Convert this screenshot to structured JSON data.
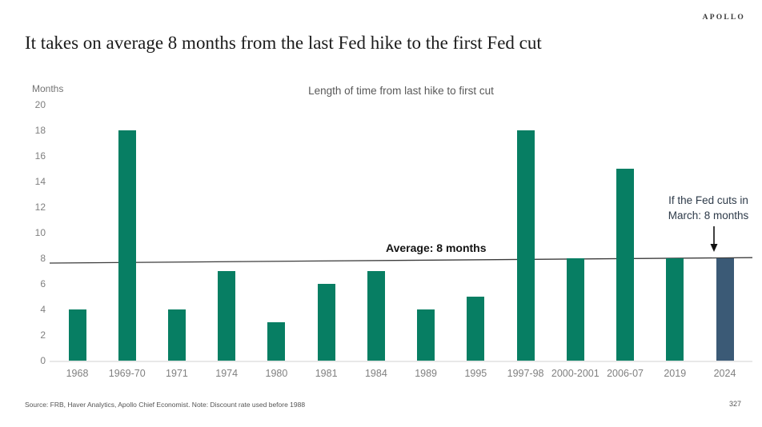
{
  "header": {
    "logo": "APOLLO",
    "title": "It takes on average 8 months from the last Fed hike to the first Fed cut"
  },
  "chart_data": {
    "type": "bar",
    "title": "Length of time from last hike to first cut",
    "ylabel": "Months",
    "xlabel": "",
    "ylim": [
      0,
      20
    ],
    "yticks": [
      20,
      18,
      16,
      14,
      12,
      10,
      8,
      6,
      4,
      2,
      0
    ],
    "grid": false,
    "legend": false,
    "categories": [
      "1968",
      "1969-70",
      "1971",
      "1974",
      "1980",
      "1981",
      "1984",
      "1989",
      "1995",
      "1997-98",
      "2000-2001",
      "2006-07",
      "2019",
      "2024"
    ],
    "values": [
      4,
      18,
      4,
      7,
      3,
      6,
      7,
      4,
      5,
      18,
      8,
      15,
      8,
      8
    ],
    "bar_color": "#077E63",
    "highlight": {
      "category": "2024",
      "color": "#3B5A76"
    },
    "average_line": {
      "value": 8,
      "label": "Average: 8 months",
      "color": "#3c3c3c"
    },
    "annotation": {
      "line1": "If the Fed cuts in",
      "line2": "March: 8 months",
      "points_to": "2024"
    }
  },
  "footer": {
    "source": "Source: FRB, Haver Analytics, Apollo Chief Economist. Note: Discount rate used before 1988",
    "page_number": "327"
  }
}
